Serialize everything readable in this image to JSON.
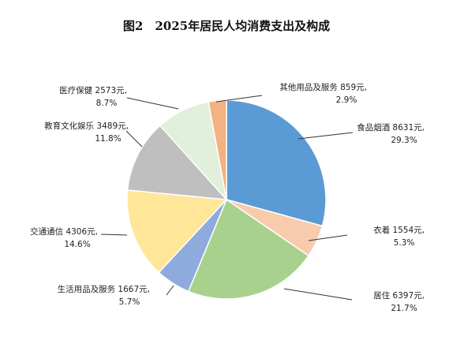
{
  "chart_data": {
    "type": "pie",
    "title": "图2　2025年居民人均消费支出及构成",
    "unit": "元",
    "slices": [
      {
        "name": "食品烟酒",
        "value": 8631,
        "percent": "29.3%",
        "label": "食品烟酒 8631元,",
        "pct_label": "29.3%",
        "color": "#5b9bd5"
      },
      {
        "name": "衣着",
        "value": 1554,
        "percent": "5.3%",
        "label": "衣着 1554元,",
        "pct_label": "5.3%",
        "color": "#f8cbad"
      },
      {
        "name": "居住",
        "value": 6397,
        "percent": "21.7%",
        "label": "居住 6397元,",
        "pct_label": "21.7%",
        "color": "#a9d18e"
      },
      {
        "name": "生活用品及服务",
        "value": 1667,
        "percent": "5.7%",
        "label": "生活用品及服务 1667元,",
        "pct_label": "5.7%",
        "color": "#8faadc"
      },
      {
        "name": "交通通信",
        "value": 4306,
        "percent": "14.6%",
        "label": "交通通信 4306元,",
        "pct_label": "14.6%",
        "color": "#ffe699"
      },
      {
        "name": "教育文化娱乐",
        "value": 3489,
        "percent": "11.8%",
        "label": "教育文化娱乐 3489元,",
        "pct_label": "11.8%",
        "color": "#bfbfbf"
      },
      {
        "name": "医疗保健",
        "value": 2573,
        "percent": "8.7%",
        "label": "医疗保健 2573元,",
        "pct_label": "8.7%",
        "color": "#e2efda"
      },
      {
        "name": "其他用品及服务",
        "value": 859,
        "percent": "2.9%",
        "label": "其他用品及服务 859元,",
        "pct_label": "2.9%",
        "color": "#f4b183"
      }
    ],
    "legend": "none"
  }
}
